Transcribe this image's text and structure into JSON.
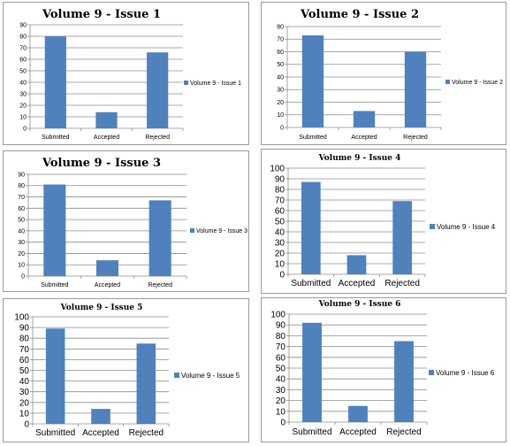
{
  "colors": {
    "bar": "#4f81bd",
    "grid": "#8c8c8c"
  },
  "chart_data": [
    {
      "type": "bar",
      "title": "Volume 9 - Issue 1",
      "categories": [
        "Submitted",
        "Accepted",
        "Rejected"
      ],
      "series": [
        {
          "name": "Volume 9 - Issue 1",
          "values": [
            80,
            14,
            66
          ]
        }
      ],
      "ylim": [
        0,
        90
      ],
      "ytick_step": 10,
      "grid": true,
      "legend": "right"
    },
    {
      "type": "bar",
      "title": "Volume 9 - Issue 2",
      "categories": [
        "Submitted",
        "Accepted",
        "Rejected"
      ],
      "series": [
        {
          "name": "Volume 9 - Issue 2",
          "values": [
            73,
            13,
            60
          ]
        }
      ],
      "ylim": [
        0,
        80
      ],
      "ytick_step": 10,
      "grid": true,
      "legend": "right"
    },
    {
      "type": "bar",
      "title": "Volume 9 - Issue 3",
      "categories": [
        "Submitted",
        "Accepted",
        "Rejected"
      ],
      "series": [
        {
          "name": "Volume 9 - Issue 3",
          "values": [
            81,
            14,
            67
          ]
        }
      ],
      "ylim": [
        0,
        90
      ],
      "ytick_step": 10,
      "grid": true,
      "legend": "right"
    },
    {
      "type": "bar",
      "title": "Volume 9 - Issue 4",
      "categories": [
        "Submitted",
        "Accepted",
        "Rejected"
      ],
      "series": [
        {
          "name": "Volume 9 - Issue 4",
          "values": [
            87,
            18,
            69
          ]
        }
      ],
      "ylim": [
        0,
        100
      ],
      "ytick_step": 10,
      "grid": true,
      "legend": "right"
    },
    {
      "type": "bar",
      "title": "Volume 9 - Issue 5",
      "categories": [
        "Submitted",
        "Accepted",
        "Rejected"
      ],
      "series": [
        {
          "name": "Volume 9 - Issue 5",
          "values": [
            89,
            14,
            75
          ]
        }
      ],
      "ylim": [
        0,
        100
      ],
      "ytick_step": 10,
      "grid": true,
      "legend": "right"
    },
    {
      "type": "bar",
      "title": "Volume 9 - Issue 6",
      "categories": [
        "Submitted",
        "Accepted",
        "Rejected"
      ],
      "series": [
        {
          "name": "Volume 9 - Issue 6",
          "values": [
            92,
            15,
            75
          ]
        }
      ],
      "ylim": [
        0,
        100
      ],
      "ytick_step": 10,
      "grid": true,
      "legend": "right"
    }
  ]
}
